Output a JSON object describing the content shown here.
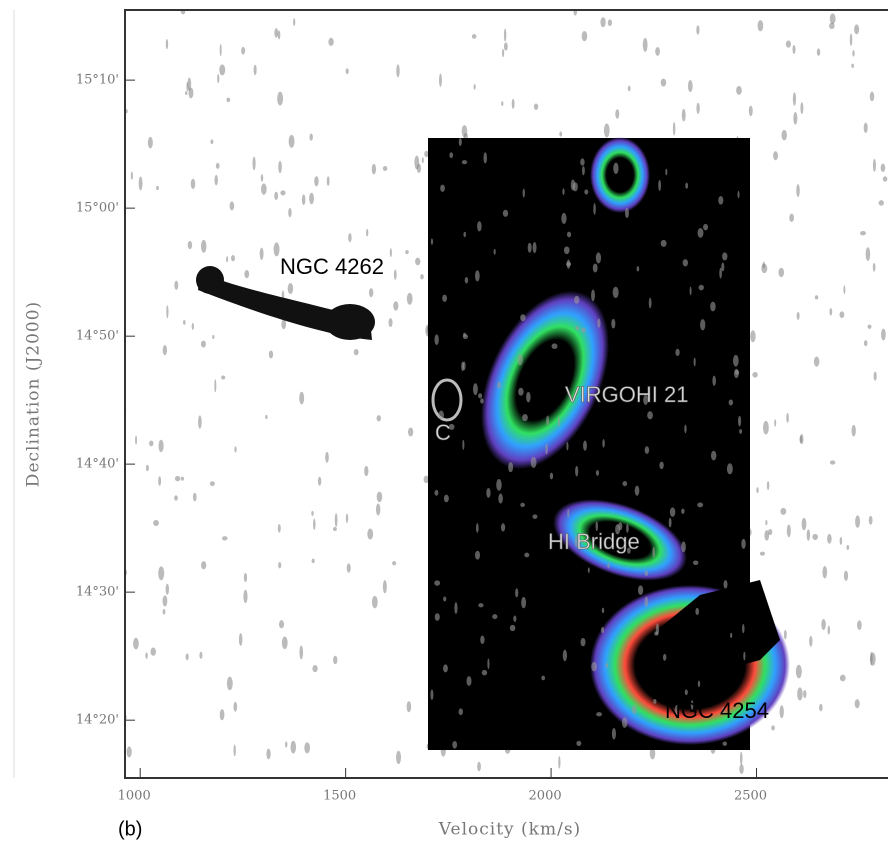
{
  "chart_data": {
    "type": "image",
    "x_label": "Velocity (km/s)",
    "y_label": "Declination (J2000)",
    "panel_label": "(b)",
    "xlim": [
      963,
      2820
    ],
    "xticks": [
      1000,
      1500,
      2000,
      2500
    ],
    "ylim": [
      14.258,
      15.258
    ],
    "yticks": [
      {
        "value": 14.3333,
        "label": "14°20'"
      },
      {
        "value": 14.5,
        "label": "14°30'"
      },
      {
        "value": 14.6667,
        "label": "14°40'"
      },
      {
        "value": 14.8333,
        "label": "14°50'"
      },
      {
        "value": 15.0,
        "label": "15°00'"
      },
      {
        "value": 15.1667,
        "label": "15°10'"
      }
    ],
    "annotations": [
      "NGC 4262",
      "VIRGOHI 21",
      "C",
      "HI Bridge",
      "NGC 4254"
    ]
  }
}
